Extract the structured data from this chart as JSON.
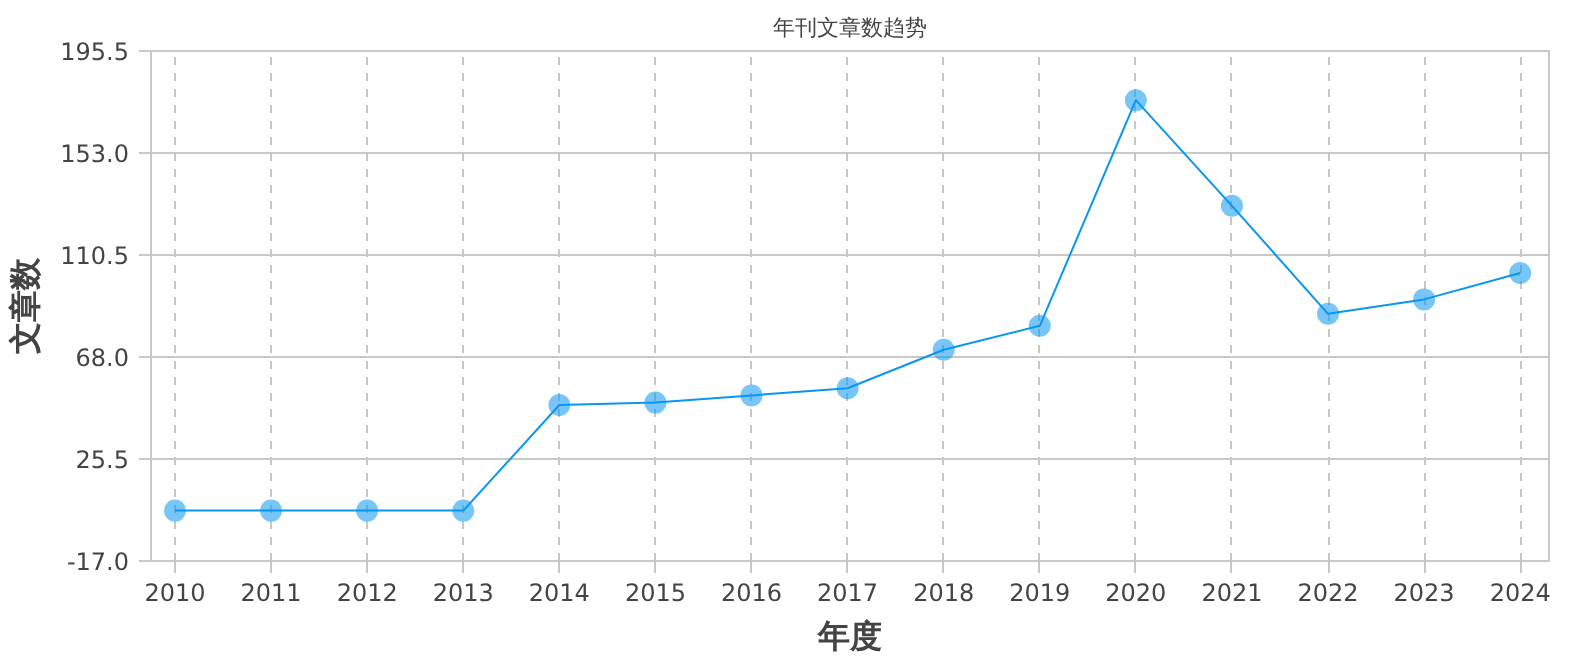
{
  "chart_data": {
    "type": "line",
    "title": "年刊文章数趋势",
    "xlabel": "年度",
    "ylabel": "文章数",
    "categories": [
      "2010",
      "2011",
      "2012",
      "2013",
      "2014",
      "2015",
      "2016",
      "2017",
      "2018",
      "2019",
      "2020",
      "2021",
      "2022",
      "2023",
      "2024"
    ],
    "series": [
      {
        "color": "#0a96f0",
        "values": [
          4,
          4,
          4,
          4,
          48,
          49,
          52,
          55,
          71,
          81,
          175,
          131,
          86,
          92,
          103
        ]
      }
    ],
    "ylim": [
      -17,
      195.5
    ],
    "yticks": [
      {
        "value": -17,
        "label": "-17.0"
      },
      25.5,
      {
        "value": 68,
        "label": "68.0"
      },
      110.5,
      {
        "value": 153,
        "label": "153.0"
      },
      195.5
    ],
    "grid": true,
    "marker": "circle",
    "line_style": "solid"
  }
}
